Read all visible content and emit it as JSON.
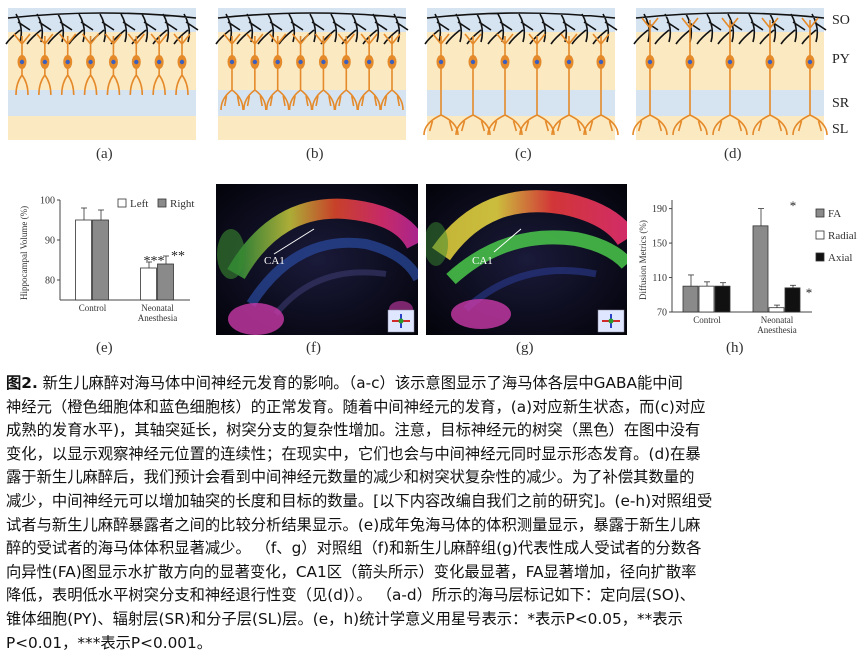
{
  "layers": {
    "so": "SO",
    "py": "PY",
    "sr": "SR",
    "sl": "SL"
  },
  "schematic_labels": [
    "(a)",
    "(b)",
    "(c)",
    "(d)"
  ],
  "lower_labels": {
    "e": "(e)",
    "f": "(f)",
    "g": "(g)",
    "h": "(h)"
  },
  "colors": {
    "so_band": "#d6e4f2",
    "py_band": "#fbe9c2",
    "sr_band": "#d6e4f2",
    "sl_band": "#fbe9c2",
    "neuron": "#e48a2a",
    "nucleus": "#3a5fbf",
    "dendrite": "#111111",
    "left_bar": "#ffffff",
    "right_bar": "#8a8a8a",
    "fa_bar": "#8a8a8a",
    "radial_bar": "#ffffff",
    "axial_bar": "#111111"
  },
  "dti_label": "CA1",
  "chart_data": [
    {
      "type": "bar",
      "ylabel": "Hippocampal Volume (%)",
      "ylim": [
        75,
        100
      ],
      "yticks": [
        "100",
        "90",
        "80"
      ],
      "categories": [
        "Control",
        "Neonatal Anesthesia"
      ],
      "category_lines": [
        [
          "Control"
        ],
        [
          "Neonatal",
          "Anesthesia"
        ]
      ],
      "series": [
        {
          "name": "Left",
          "values": [
            95,
            83
          ],
          "err": [
            3,
            1.5
          ]
        },
        {
          "name": "Right",
          "values": [
            95,
            84
          ],
          "err": [
            2.5,
            2
          ]
        }
      ],
      "annotations": [
        "***",
        "**"
      ],
      "legend_position": "top-right"
    },
    {
      "type": "bar",
      "ylabel": "Diffusion Metrics (%)",
      "ylim": [
        70,
        200
      ],
      "yticks": [
        "190",
        "150",
        "110",
        "70"
      ],
      "categories": [
        "Control",
        "Neonatal Anesthesia"
      ],
      "category_lines": [
        [
          "Control"
        ],
        [
          "Neonatal",
          "Anesthesia"
        ]
      ],
      "series": [
        {
          "name": "FA",
          "values": [
            100,
            170
          ],
          "err": [
            13,
            20
          ]
        },
        {
          "name": "Radial",
          "values": [
            100,
            75
          ],
          "err": [
            5,
            3
          ]
        },
        {
          "name": "Axial",
          "values": [
            100,
            98
          ],
          "err": [
            4,
            3
          ]
        }
      ],
      "annotations": [
        "*",
        "*"
      ],
      "legend_position": "right"
    }
  ],
  "caption": {
    "fig_label": "图2.",
    "lines": [
      " 新生儿麻醉对海马体中间神经元发育的影响。（a-c）该示意图显示了海马体各层中GABA能中间",
      "神经元（橙色细胞体和蓝色细胞核）的正常发育。随着中间神经元的发育，(a)对应新生状态，而(c)对应",
      "成熟的发育水平)，其轴突延长，树突分支的复杂性增加。注意，目标神经元的树突（黑色）在图中没有",
      "变化，以显示观察神经元位置的连续性；在现实中，它们也会与中间神经元同时显示形态发育。(d)在暴",
      "露于新生儿麻醉后，我们预计会看到中间神经元数量的减少和树突状复杂性的减少。为了补偿其数量的",
      "减少，中间神经元可以增加轴突的长度和目标的数量。[以下内容改编自我们之前的研究]。(e-h)对照组受",
      "试者与新生儿麻醉暴露者之间的比较分析结果显示。(e)成年兔海马体的体积测量显示，暴露于新生儿麻",
      "醉的受试者的海马体体积显著减少。 （f、g）对照组（f)和新生儿麻醉组(g)代表性成人受试者的分数各",
      "向异性(FA)图显示水扩散方向的显著变化，CA1区（箭头所示）变化最显著，FA显著增加，径向扩散率",
      "降低，表明低水平树突分支和神经退行性变（见(d)）。 （a-d）所示的海马层标记如下：定向层(SO)、",
      "锥体细胞(PY)、辐射层(SR)和分子层(SL)层。(e，h)统计学意义用星号表示：*表示P<0.05，**表示",
      "P<0.01，***表示P<0.001。"
    ]
  }
}
